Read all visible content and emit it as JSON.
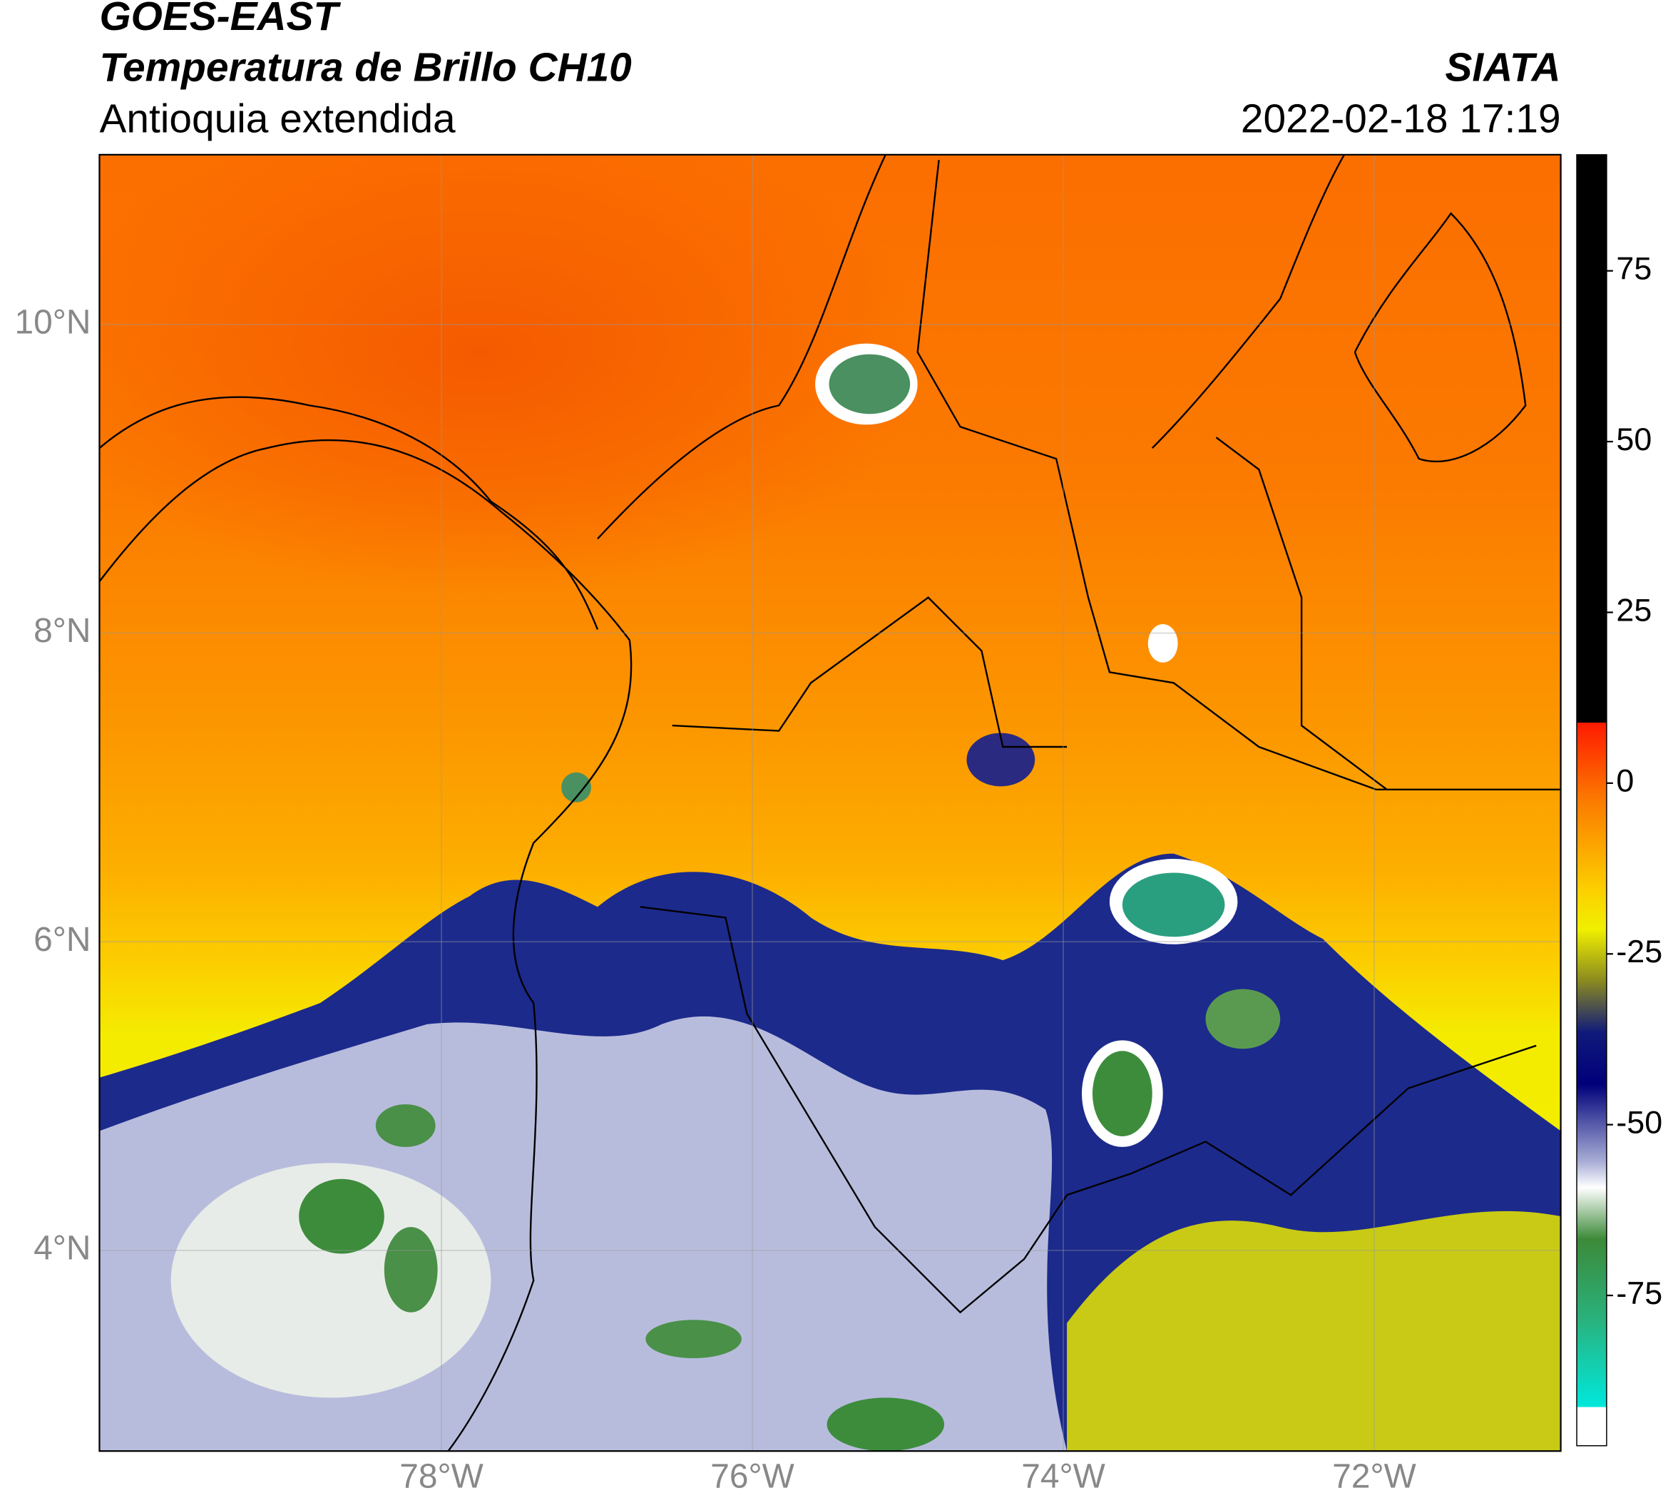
{
  "header": {
    "title_line1": "GOES-EAST",
    "title_line2": "Temperatura de Brillo CH10",
    "subtitle": "Antioquia extendida",
    "source": "SIATA",
    "datetime": "2022-02-18 17:19"
  },
  "map": {
    "xlim": [
      -80.2,
      -70.8
    ],
    "ylim": [
      2.7,
      11.1
    ],
    "xticks": [
      {
        "value": -78,
        "label": "78°W"
      },
      {
        "value": -76,
        "label": "76°W"
      },
      {
        "value": -74,
        "label": "74°W"
      },
      {
        "value": -72,
        "label": "72°W"
      }
    ],
    "yticks": [
      {
        "value": 10,
        "label": "10°N"
      },
      {
        "value": 8,
        "label": "8°N"
      },
      {
        "value": 6,
        "label": "6°N"
      },
      {
        "value": 4,
        "label": "4°N"
      }
    ]
  },
  "colorbar": {
    "vlim": [
      -97,
      92
    ],
    "ticks": [
      75,
      50,
      25,
      0,
      -25,
      -50,
      -75
    ]
  }
}
